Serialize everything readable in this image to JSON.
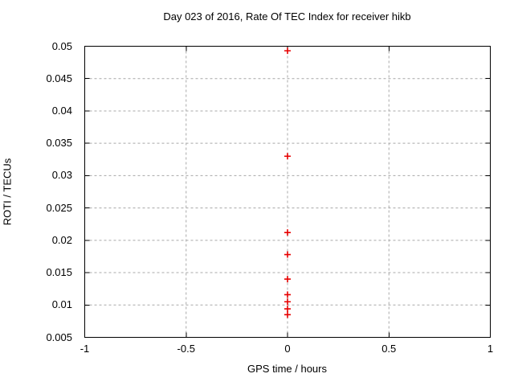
{
  "chart_data": {
    "type": "scatter",
    "title": "Day 023 of 2016, Rate Of TEC Index for receiver hikb",
    "xlabel": "GPS time / hours",
    "ylabel": "ROTI / TECUs",
    "xlim": [
      -1,
      1
    ],
    "ylim": [
      0.005,
      0.05
    ],
    "xticks": [
      -1,
      -0.5,
      0,
      0.5,
      1
    ],
    "yticks": [
      0.005,
      0.01,
      0.015,
      0.02,
      0.025,
      0.03,
      0.035,
      0.04,
      0.045,
      0.05
    ],
    "grid": true,
    "legend": "none",
    "marker": "plus",
    "colors": {
      "marker": "#e60000",
      "grid": "#a8a8a8",
      "border": "#000000",
      "text": "#000000",
      "background": "#ffffff"
    },
    "series": [
      {
        "name": "ROTI",
        "x": [
          0,
          0,
          0,
          0,
          0,
          0,
          0,
          0,
          0
        ],
        "y": [
          0.0493,
          0.033,
          0.0212,
          0.0178,
          0.014,
          0.0116,
          0.0105,
          0.0094,
          0.0085
        ]
      }
    ]
  }
}
